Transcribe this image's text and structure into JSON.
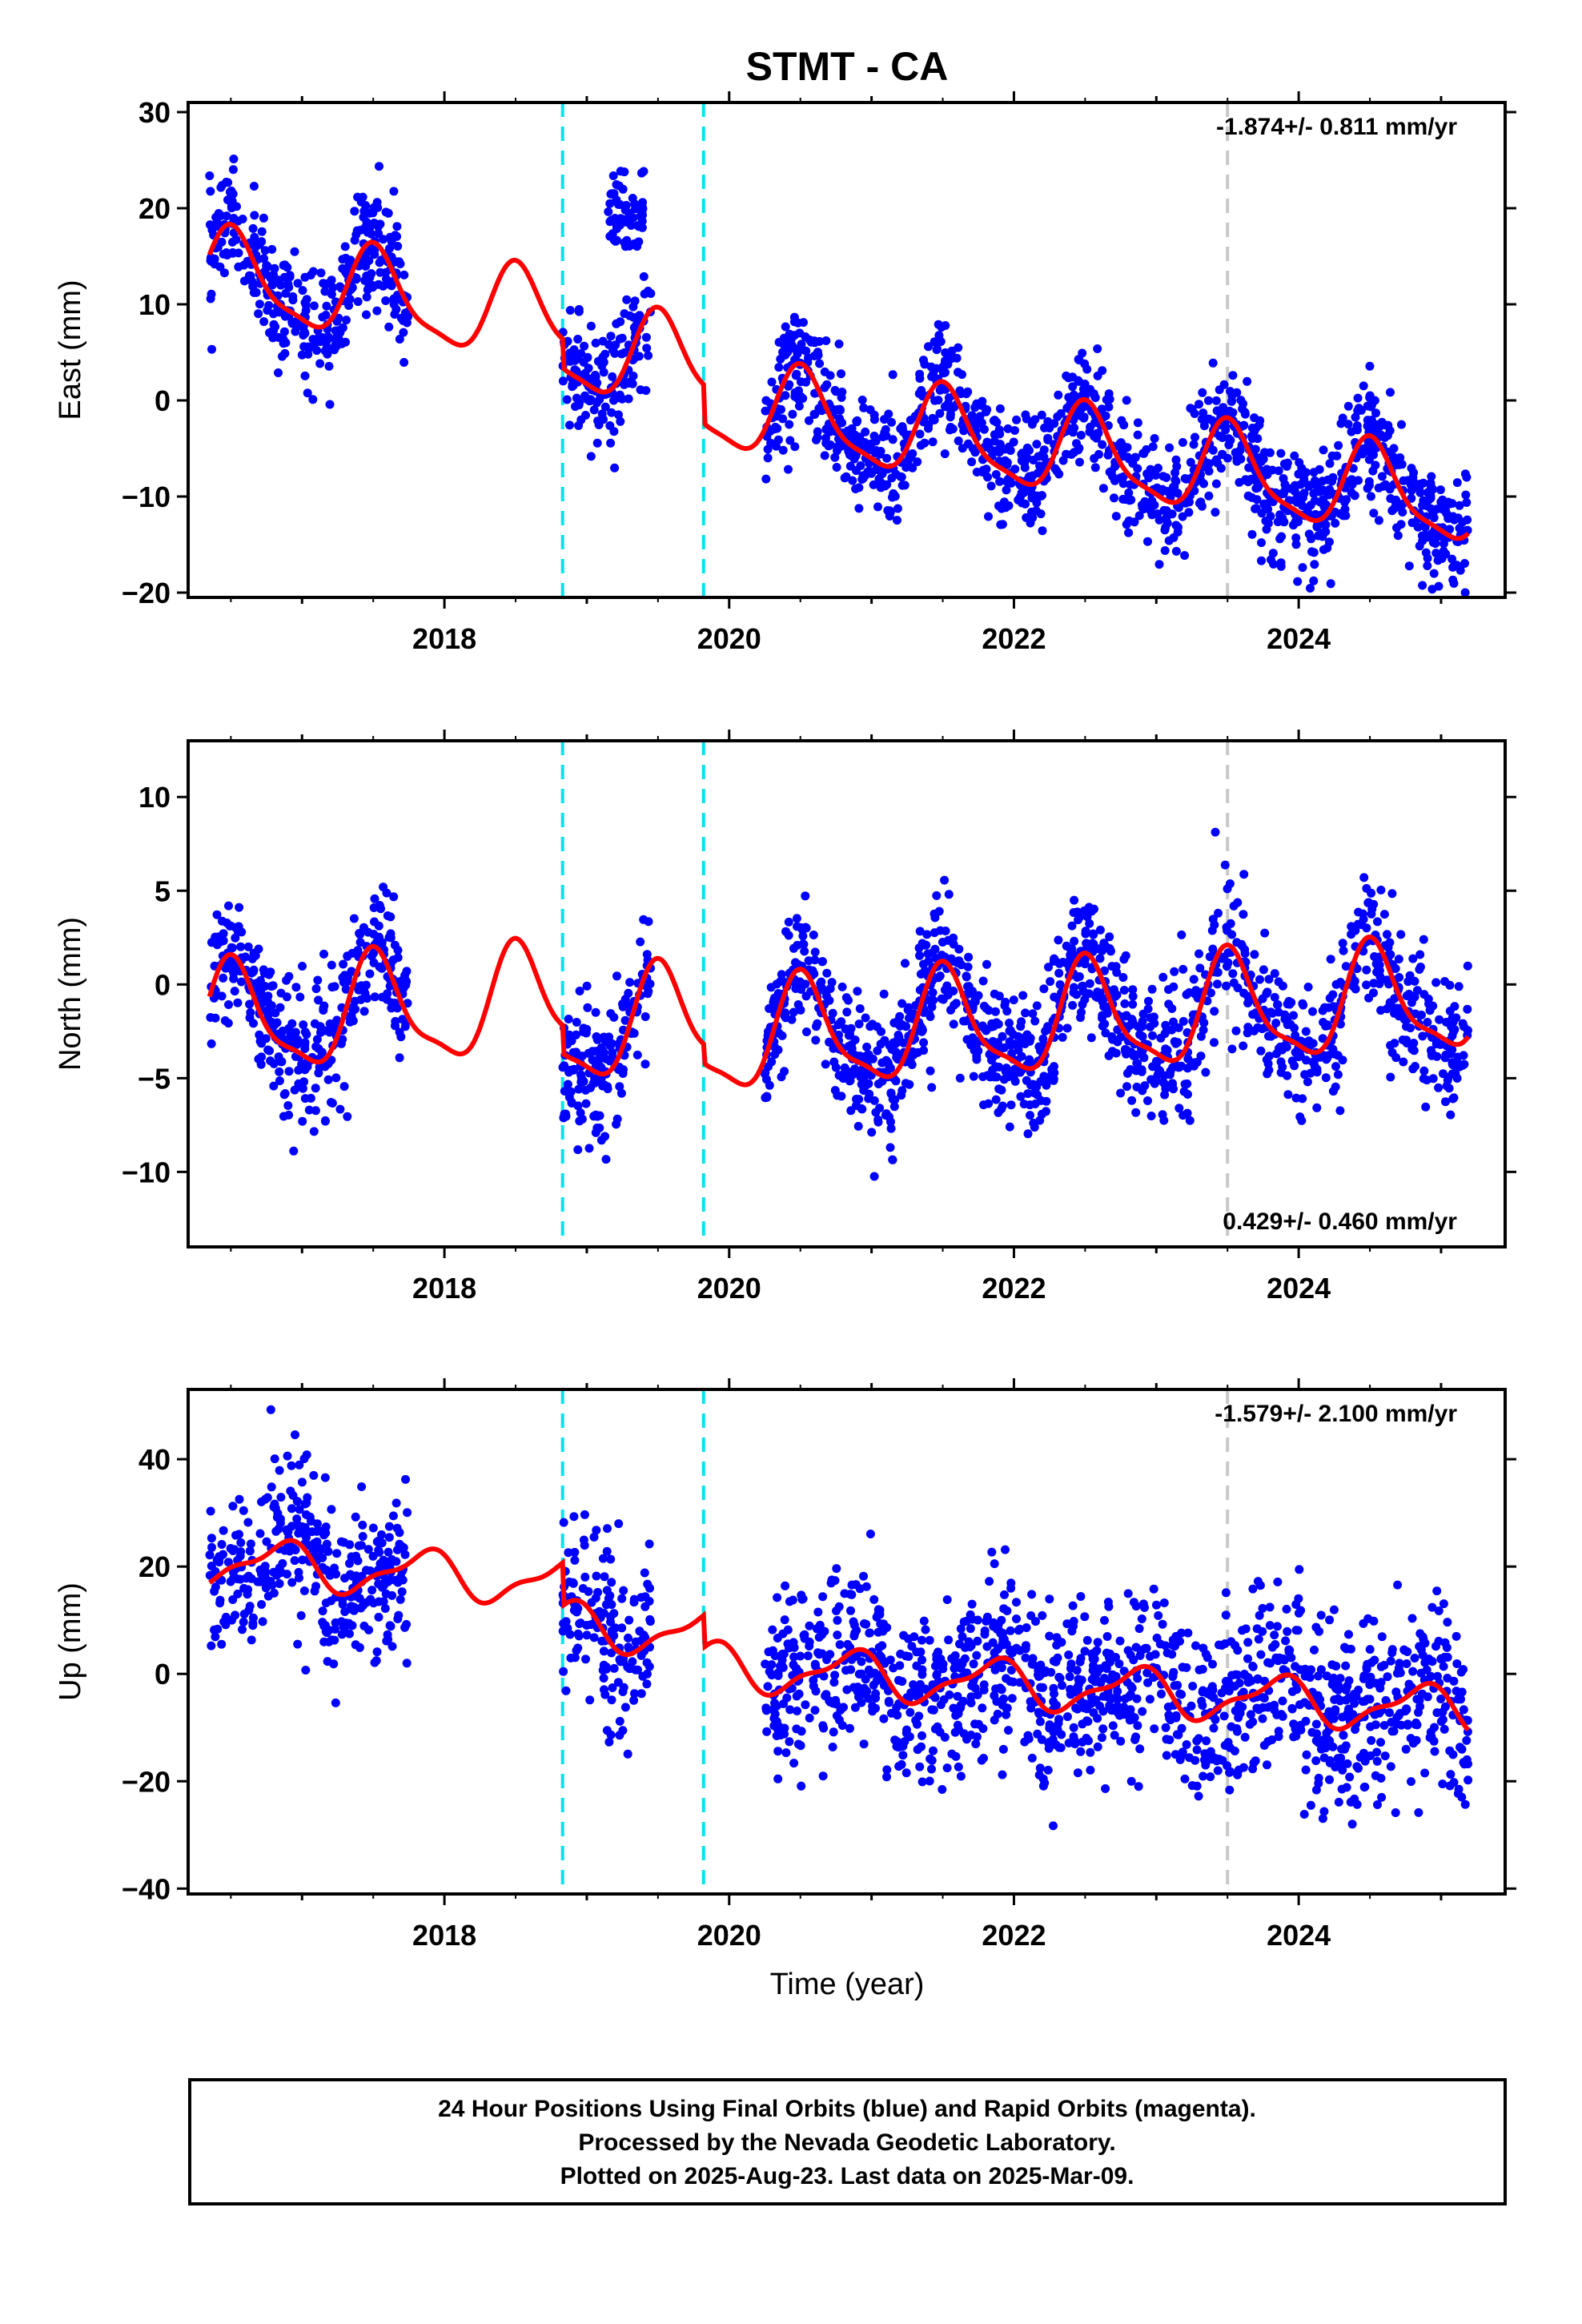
{
  "title": "STMT - CA",
  "xlabel": "Time (year)",
  "x_ticks": [
    "2018",
    "2020",
    "2022",
    "2024"
  ],
  "colors": {
    "final_orbits": "#0000ff",
    "model": "#ff0000",
    "antenna_change": "#00e5ee",
    "equipment_change": "#c8c8c8",
    "frame": "#000000"
  },
  "chart_data": [
    {
      "type": "scatter",
      "component": "east",
      "ylabel": "East (mm)",
      "y_ticks": [
        "30",
        "20",
        "10",
        "0",
        "−10",
        "−20"
      ],
      "ylim": [
        -20.5,
        31
      ],
      "xlim": [
        2016.2,
        2025.45
      ],
      "rate_text": "-1.874+/- 0.811 mm/yr",
      "rate_position": "top-right",
      "trend_mm_per_yr": -1.874,
      "annual_amplitude": 4.5,
      "annual_peak_month_fraction": 0.52,
      "semiannual_amplitude": 1.2,
      "offsets": [
        {
          "year": 2018.83,
          "jump": -3.0
        },
        {
          "year": 2019.82,
          "jump": -4.0
        }
      ],
      "model_start_value": 13,
      "scatter_std": 3.0,
      "data_segments": [
        [
          2016.35,
          2017.75
        ],
        [
          2018.83,
          2019.45
        ],
        [
          2020.25,
          2025.19
        ]
      ],
      "anomaly_cluster": {
        "x_range": [
          2019.15,
          2019.4
        ],
        "y_range": [
          16,
          24
        ]
      },
      "vertical_lines": [
        {
          "year": 2018.83,
          "style": "dashed",
          "kind": "antenna_change"
        },
        {
          "year": 2019.82,
          "style": "dashed",
          "kind": "antenna_change"
        },
        {
          "year": 2023.5,
          "style": "dashed",
          "kind": "equipment_change"
        }
      ]
    },
    {
      "type": "scatter",
      "component": "north",
      "ylabel": "North (mm)",
      "y_ticks": [
        "10",
        "5",
        "0",
        "−5",
        "−10"
      ],
      "ylim": [
        -14,
        13
      ],
      "xlim": [
        2016.2,
        2025.45
      ],
      "rate_text": "0.429+/- 0.460 mm/yr",
      "rate_position": "bottom-right",
      "trend_mm_per_yr": 0.429,
      "annual_amplitude": 2.8,
      "annual_peak_month_fraction": 0.52,
      "semiannual_amplitude": 0.8,
      "offsets": [
        {
          "year": 2018.83,
          "jump": -1.5
        },
        {
          "year": 2019.82,
          "jump": -1.0
        }
      ],
      "model_start_value": -2,
      "scatter_std": 1.8,
      "data_segments": [
        [
          2016.35,
          2017.75
        ],
        [
          2018.83,
          2019.45
        ],
        [
          2020.25,
          2025.19
        ]
      ],
      "vertical_lines": [
        {
          "year": 2018.83,
          "style": "dashed",
          "kind": "antenna_change"
        },
        {
          "year": 2019.82,
          "style": "dashed",
          "kind": "antenna_change"
        },
        {
          "year": 2023.5,
          "style": "dashed",
          "kind": "equipment_change"
        }
      ]
    },
    {
      "type": "scatter",
      "component": "up",
      "ylabel": "Up (mm)",
      "y_ticks": [
        "40",
        "20",
        "0",
        "−20",
        "−40"
      ],
      "ylim": [
        -41,
        53
      ],
      "xlim": [
        2016.2,
        2025.45
      ],
      "rate_text": "-1.579+/- 2.100 mm/yr",
      "rate_position": "top-right",
      "trend_mm_per_yr": -1.579,
      "annual_amplitude": 4.0,
      "annual_peak_month_fraction": 0.85,
      "semiannual_amplitude": 1.5,
      "offsets": [
        {
          "year": 2018.83,
          "jump": -8.0
        },
        {
          "year": 2019.82,
          "jump": -6.0
        }
      ],
      "model_start_value": 21,
      "scatter_std": 8.0,
      "data_segments": [
        [
          2016.35,
          2017.75
        ],
        [
          2018.83,
          2019.45
        ],
        [
          2020.25,
          2025.19
        ]
      ],
      "vertical_lines": [
        {
          "year": 2018.83,
          "style": "dashed",
          "kind": "antenna_change"
        },
        {
          "year": 2019.82,
          "style": "dashed",
          "kind": "antenna_change"
        },
        {
          "year": 2023.5,
          "style": "dashed",
          "kind": "equipment_change"
        }
      ]
    }
  ],
  "footer": {
    "line1": "24 Hour Positions Using Final Orbits (blue) and Rapid Orbits (magenta).",
    "line2": "Processed by the Nevada Geodetic Laboratory.",
    "line3": "Plotted on 2025-Aug-23. Last data on 2025-Mar-09."
  }
}
